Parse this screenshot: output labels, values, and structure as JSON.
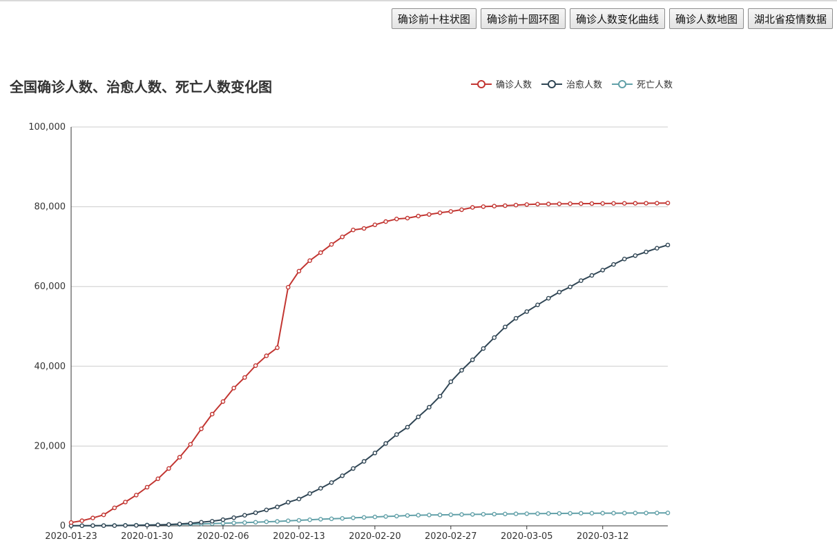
{
  "nav": {
    "buttons": [
      "确诊前十柱状图",
      "确诊前十圆环图",
      "确诊人数变化曲线",
      "确诊人数地图",
      "湖北省疫情数据"
    ]
  },
  "chart_data": {
    "type": "line",
    "title": "全国确诊人数、治愈人数、死亡人数变化图",
    "ylim": [
      0,
      100000
    ],
    "y_ticks": [
      "0",
      "20,000",
      "40,000",
      "60,000",
      "80,000",
      "100,000"
    ],
    "x_tick_labels": [
      "2020-01-23",
      "2020-01-30",
      "2020-02-06",
      "2020-02-13",
      "2020-02-20",
      "2020-02-27",
      "2020-03-05",
      "2020-03-12"
    ],
    "x_start": "2020-01-23",
    "x_end": "2020-03-18",
    "grid": true,
    "legend_position": "top-right",
    "series": [
      {
        "name": "确诊人数",
        "color": "#c23531",
        "values": [
          830,
          1287,
          1975,
          2744,
          4515,
          5974,
          7711,
          9692,
          11791,
          14380,
          17205,
          20438,
          24324,
          28018,
          31161,
          34546,
          37198,
          40171,
          42638,
          44653,
          59804,
          63851,
          66492,
          68500,
          70548,
          72436,
          74185,
          74576,
          75465,
          76288,
          76936,
          77150,
          77658,
          78064,
          78497,
          78824,
          79251,
          79824,
          80026,
          80151,
          80270,
          80409,
          80552,
          80651,
          80695,
          80735,
          80754,
          80778,
          80793,
          80813,
          80824,
          80844,
          80860,
          80881,
          80894,
          80928
        ]
      },
      {
        "name": "治愈人数",
        "color": "#2f4554",
        "values": [
          34,
          38,
          49,
          51,
          60,
          103,
          124,
          171,
          243,
          328,
          475,
          632,
          892,
          1153,
          1540,
          2050,
          2649,
          3281,
          3996,
          4740,
          5911,
          6723,
          8096,
          9419,
          10844,
          12552,
          14376,
          16155,
          18264,
          20659,
          22888,
          24734,
          27323,
          29745,
          32495,
          36117,
          39002,
          41625,
          44462,
          47204,
          49856,
          52045,
          53726,
          55404,
          57065,
          58600,
          59897,
          61475,
          62793,
          64111,
          65541,
          66911,
          67749,
          68679,
          69601,
          70420
        ]
      },
      {
        "name": "死亡人数",
        "color": "#61a0a8",
        "values": [
          25,
          41,
          56,
          80,
          106,
          132,
          170,
          213,
          259,
          304,
          361,
          425,
          490,
          563,
          636,
          722,
          811,
          908,
          1016,
          1113,
          1259,
          1380,
          1523,
          1665,
          1770,
          1868,
          2004,
          2118,
          2236,
          2345,
          2442,
          2592,
          2663,
          2715,
          2744,
          2788,
          2835,
          2870,
          2912,
          2943,
          2981,
          3012,
          3042,
          3070,
          3097,
          3119,
          3136,
          3158,
          3169,
          3176,
          3189,
          3199,
          3213,
          3226,
          3237,
          3245
        ]
      }
    ]
  }
}
